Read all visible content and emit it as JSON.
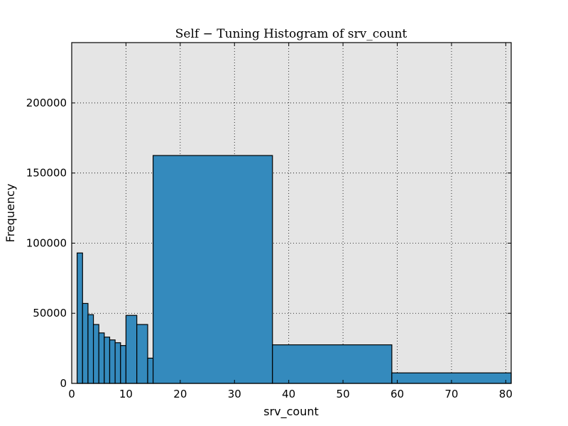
{
  "chart_data": {
    "type": "bar",
    "title": "Self − Tuning Histogram of srv_count",
    "xlabel": "srv_count",
    "ylabel": "Frequency",
    "xlim": [
      0,
      81
    ],
    "ylim": [
      0,
      243000
    ],
    "grid": true,
    "background": "#e5e5e5",
    "bar_color": "#348abd",
    "edge_color": "#000000",
    "x_ticks": [
      0,
      10,
      20,
      30,
      40,
      50,
      60,
      70,
      80
    ],
    "y_ticks": [
      0,
      50000,
      100000,
      150000,
      200000
    ],
    "x_tick_labels": [
      "0",
      "10",
      "20",
      "30",
      "40",
      "50",
      "60",
      "70",
      "80"
    ],
    "y_tick_labels": [
      "0",
      "50000",
      "100000",
      "150000",
      "200000"
    ],
    "bins": [
      {
        "start": 1,
        "end": 2,
        "value": 93000
      },
      {
        "start": 2,
        "end": 3,
        "value": 57000
      },
      {
        "start": 3,
        "end": 4,
        "value": 49000
      },
      {
        "start": 4,
        "end": 5,
        "value": 42000
      },
      {
        "start": 5,
        "end": 6,
        "value": 36000
      },
      {
        "start": 6,
        "end": 7,
        "value": 33000
      },
      {
        "start": 7,
        "end": 8,
        "value": 31000
      },
      {
        "start": 8,
        "end": 9,
        "value": 29000
      },
      {
        "start": 9,
        "end": 10,
        "value": 27000
      },
      {
        "start": 10,
        "end": 12,
        "value": 48500
      },
      {
        "start": 12,
        "end": 14,
        "value": 42000
      },
      {
        "start": 14,
        "end": 15,
        "value": 18000
      },
      {
        "start": 15,
        "end": 37,
        "value": 162500
      },
      {
        "start": 37,
        "end": 59,
        "value": 27500
      },
      {
        "start": 59,
        "end": 81,
        "value": 7500
      }
    ]
  }
}
